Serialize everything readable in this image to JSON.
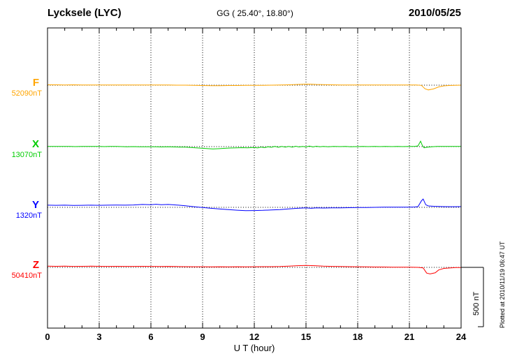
{
  "header": {
    "station": "Lycksele (LYC)",
    "coords": "GG ( 25.40°,  18.80°)",
    "date": "2010/05/25"
  },
  "channels": [
    {
      "label": "F",
      "baseline_label": "52090nT",
      "color": "#FFA500"
    },
    {
      "label": "X",
      "baseline_label": "13070nT",
      "color": "#00CC00"
    },
    {
      "label": "Y",
      "baseline_label": "1320nT",
      "color": "#0000FF"
    },
    {
      "label": "Z",
      "baseline_label": "50410nT",
      "color": "#FF0000"
    }
  ],
  "axis": {
    "ticks": [
      "0",
      "3",
      "6",
      "9",
      "12",
      "15",
      "18",
      "21",
      "24"
    ],
    "tick_hours": [
      0,
      3,
      6,
      9,
      12,
      15,
      18,
      21,
      24
    ],
    "xlabel": "U T (hour)",
    "x_range": [
      0,
      24
    ]
  },
  "scale_bar": {
    "label": "500 nT",
    "value_nt": 500
  },
  "footer_note": "Plotted at 2010/11/19 06:47 UT",
  "chart_data": {
    "type": "line",
    "title": "Lycksele (LYC) magnetogram 2010/05/25",
    "xlabel": "U T (hour)",
    "x_unit": "hour",
    "x_range": [
      0,
      24
    ],
    "grid": "vertical dotted lines every 3 hours; dotted baseline per channel",
    "scale_reference_nt": 500,
    "series": [
      {
        "name": "F",
        "baseline_nT": 52090,
        "color": "#FFA500",
        "points": [
          [
            0,
            3
          ],
          [
            0.5,
            3
          ],
          [
            1,
            2
          ],
          [
            1.5,
            3
          ],
          [
            2,
            2
          ],
          [
            2.5,
            2
          ],
          [
            3,
            2
          ],
          [
            3.5,
            2
          ],
          [
            4,
            2
          ],
          [
            4.5,
            1
          ],
          [
            5,
            1
          ],
          [
            5.5,
            2
          ],
          [
            6,
            2
          ],
          [
            6.5,
            1
          ],
          [
            7,
            1
          ],
          [
            7.5,
            0
          ],
          [
            8,
            0
          ],
          [
            8.5,
            -1
          ],
          [
            9,
            -3
          ],
          [
            9.5,
            -4
          ],
          [
            10,
            -4
          ],
          [
            10.5,
            -3
          ],
          [
            11,
            -3
          ],
          [
            11.5,
            -2
          ],
          [
            12,
            -2
          ],
          [
            12.5,
            -1
          ],
          [
            13,
            0
          ],
          [
            13.5,
            1
          ],
          [
            14,
            3
          ],
          [
            14.5,
            6
          ],
          [
            15,
            9
          ],
          [
            15.3,
            8
          ],
          [
            15.6,
            6
          ],
          [
            16,
            4
          ],
          [
            16.5,
            3
          ],
          [
            17,
            2
          ],
          [
            17.5,
            2
          ],
          [
            18,
            2
          ],
          [
            18.5,
            1
          ],
          [
            19,
            1
          ],
          [
            19.5,
            2
          ],
          [
            20,
            2
          ],
          [
            20.5,
            2
          ],
          [
            21,
            2
          ],
          [
            21.4,
            1
          ],
          [
            21.7,
            -2
          ],
          [
            21.9,
            -30
          ],
          [
            22.1,
            -40
          ],
          [
            22.4,
            -32
          ],
          [
            22.7,
            -15
          ],
          [
            23,
            -6
          ],
          [
            23.3,
            -3
          ],
          [
            23.6,
            -1
          ],
          [
            24,
            0
          ]
        ]
      },
      {
        "name": "X",
        "baseline_nT": 13070,
        "color": "#00CC00",
        "points": [
          [
            0,
            2
          ],
          [
            0.3,
            1
          ],
          [
            0.6,
            2
          ],
          [
            1,
            1
          ],
          [
            1.3,
            2
          ],
          [
            1.6,
            0
          ],
          [
            2,
            1
          ],
          [
            2.3,
            2
          ],
          [
            2.6,
            1
          ],
          [
            3,
            1
          ],
          [
            3.3,
            0
          ],
          [
            3.6,
            1
          ],
          [
            4,
            1
          ],
          [
            4.3,
            0
          ],
          [
            4.6,
            -1
          ],
          [
            5,
            0
          ],
          [
            5.3,
            -2
          ],
          [
            5.6,
            -1
          ],
          [
            6,
            -2
          ],
          [
            6.3,
            -1
          ],
          [
            6.6,
            -3
          ],
          [
            7,
            -2
          ],
          [
            7.3,
            -3
          ],
          [
            7.6,
            -4
          ],
          [
            8,
            -5
          ],
          [
            8.3,
            -7
          ],
          [
            8.6,
            -10
          ],
          [
            9,
            -14
          ],
          [
            9.3,
            -17
          ],
          [
            9.6,
            -20
          ],
          [
            10,
            -17
          ],
          [
            10.3,
            -14
          ],
          [
            10.6,
            -12
          ],
          [
            11,
            -10
          ],
          [
            11.3,
            -9
          ],
          [
            11.6,
            -10
          ],
          [
            12,
            -7
          ],
          [
            12.2,
            -11
          ],
          [
            12.4,
            -4
          ],
          [
            12.6,
            -9
          ],
          [
            12.8,
            -2
          ],
          [
            13,
            -6
          ],
          [
            13.2,
            2
          ],
          [
            13.4,
            -6
          ],
          [
            13.6,
            1
          ],
          [
            13.8,
            -5
          ],
          [
            14,
            2
          ],
          [
            14.2,
            -4
          ],
          [
            14.4,
            3
          ],
          [
            14.6,
            -3
          ],
          [
            14.8,
            2
          ],
          [
            15,
            -3
          ],
          [
            15.2,
            4
          ],
          [
            15.4,
            -3
          ],
          [
            15.6,
            3
          ],
          [
            15.8,
            -2
          ],
          [
            16,
            2
          ],
          [
            16.3,
            -2
          ],
          [
            16.6,
            1
          ],
          [
            17,
            0
          ],
          [
            17.3,
            1
          ],
          [
            17.6,
            -1
          ],
          [
            18,
            0
          ],
          [
            18.3,
            1
          ],
          [
            18.6,
            0
          ],
          [
            19,
            1
          ],
          [
            19.3,
            0
          ],
          [
            19.6,
            1
          ],
          [
            20,
            0
          ],
          [
            20.3,
            1
          ],
          [
            20.6,
            0
          ],
          [
            21,
            1
          ],
          [
            21.3,
            2
          ],
          [
            21.5,
            6
          ],
          [
            21.65,
            45
          ],
          [
            21.75,
            10
          ],
          [
            21.85,
            -10
          ],
          [
            22,
            -6
          ],
          [
            22.3,
            -2
          ],
          [
            22.6,
            1
          ],
          [
            23,
            1
          ],
          [
            23.3,
            2
          ],
          [
            23.6,
            1
          ],
          [
            24,
            2
          ]
        ]
      },
      {
        "name": "Y",
        "baseline_nT": 1320,
        "color": "#0000FF",
        "points": [
          [
            0,
            18
          ],
          [
            0.5,
            17
          ],
          [
            1,
            18
          ],
          [
            1.5,
            16
          ],
          [
            2,
            17
          ],
          [
            2.5,
            18
          ],
          [
            3,
            17
          ],
          [
            3.5,
            18
          ],
          [
            4,
            19
          ],
          [
            4.5,
            18
          ],
          [
            5,
            20
          ],
          [
            5.5,
            24
          ],
          [
            6,
            22
          ],
          [
            6.3,
            26
          ],
          [
            6.6,
            22
          ],
          [
            7,
            24
          ],
          [
            7.3,
            21
          ],
          [
            7.6,
            18
          ],
          [
            8,
            13
          ],
          [
            8.5,
            5
          ],
          [
            9,
            -2
          ],
          [
            9.5,
            -8
          ],
          [
            10,
            -14
          ],
          [
            10.5,
            -19
          ],
          [
            11,
            -24
          ],
          [
            11.5,
            -28
          ],
          [
            12,
            -27
          ],
          [
            12.5,
            -25
          ],
          [
            13,
            -22
          ],
          [
            13.5,
            -19
          ],
          [
            14,
            -13
          ],
          [
            14.5,
            -8
          ],
          [
            15,
            -4
          ],
          [
            15.3,
            -8
          ],
          [
            15.6,
            -4
          ],
          [
            16,
            -6
          ],
          [
            16.5,
            -4
          ],
          [
            17,
            -4
          ],
          [
            17.5,
            -3
          ],
          [
            18,
            -2
          ],
          [
            18.5,
            -1
          ],
          [
            19,
            0
          ],
          [
            19.5,
            1
          ],
          [
            20,
            2
          ],
          [
            20.5,
            2
          ],
          [
            21,
            2
          ],
          [
            21.3,
            3
          ],
          [
            21.5,
            6
          ],
          [
            21.7,
            55
          ],
          [
            21.8,
            70
          ],
          [
            21.95,
            22
          ],
          [
            22.1,
            12
          ],
          [
            22.4,
            9
          ],
          [
            22.7,
            7
          ],
          [
            23,
            6
          ],
          [
            23.5,
            5
          ],
          [
            24,
            6
          ]
        ]
      },
      {
        "name": "Z",
        "baseline_nT": 50410,
        "color": "#FF0000",
        "points": [
          [
            0,
            10
          ],
          [
            0.5,
            9
          ],
          [
            1,
            10
          ],
          [
            1.5,
            8
          ],
          [
            2,
            9
          ],
          [
            2.5,
            10
          ],
          [
            3,
            9
          ],
          [
            3.5,
            8
          ],
          [
            4,
            9
          ],
          [
            4.5,
            8
          ],
          [
            5,
            8
          ],
          [
            5.5,
            9
          ],
          [
            6,
            8
          ],
          [
            6.5,
            7
          ],
          [
            7,
            8
          ],
          [
            7.5,
            7
          ],
          [
            8,
            6
          ],
          [
            8.5,
            5
          ],
          [
            9,
            5
          ],
          [
            9.5,
            4
          ],
          [
            10,
            5
          ],
          [
            10.5,
            4
          ],
          [
            11,
            5
          ],
          [
            11.5,
            4
          ],
          [
            12,
            5
          ],
          [
            12.5,
            6
          ],
          [
            13,
            6
          ],
          [
            13.5,
            7
          ],
          [
            14,
            10
          ],
          [
            14.5,
            14
          ],
          [
            15,
            16
          ],
          [
            15.5,
            14
          ],
          [
            16,
            10
          ],
          [
            16.5,
            8
          ],
          [
            17,
            7
          ],
          [
            17.5,
            6
          ],
          [
            18,
            5
          ],
          [
            18.5,
            4
          ],
          [
            19,
            3
          ],
          [
            19.5,
            3
          ],
          [
            20,
            2
          ],
          [
            20.5,
            2
          ],
          [
            21,
            1
          ],
          [
            21.5,
            0
          ],
          [
            21.8,
            -4
          ],
          [
            22,
            -48
          ],
          [
            22.2,
            -55
          ],
          [
            22.5,
            -46
          ],
          [
            22.7,
            -22
          ],
          [
            23,
            -9
          ],
          [
            23.4,
            -4
          ],
          [
            23.7,
            -2
          ],
          [
            24,
            -1
          ]
        ]
      }
    ]
  }
}
